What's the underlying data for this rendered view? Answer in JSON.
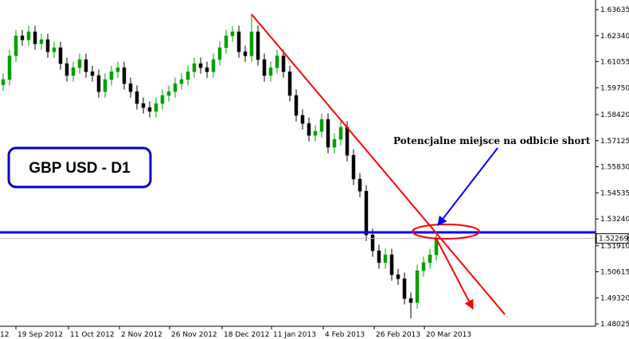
{
  "chart_data": {
    "type": "candlestick",
    "title": "GBP USD - D1",
    "annotation": "Potencjalne miejsce na odbicie short",
    "up_color": "#00a000",
    "down_color": "#000000",
    "xlim": [
      -0.5,
      93
    ],
    "xticks": [
      {
        "value": -0.75,
        "label": "12"
      },
      {
        "value": 2,
        "label": "19 Sep 2012"
      },
      {
        "value": 10.25,
        "label": "11 Oct 2012"
      },
      {
        "value": 18.25,
        "label": "2 Nov 2012"
      },
      {
        "value": 26.125,
        "label": "26 Nov 2012"
      },
      {
        "value": 34.375,
        "label": "18 Dec 2012"
      },
      {
        "value": 42.125,
        "label": "11 Jan 2013"
      },
      {
        "value": 50.25,
        "label": "4 Feb 2013"
      },
      {
        "value": 58.25,
        "label": "26 Feb 2013"
      },
      {
        "value": 66.125,
        "label": "20 Mar 2013"
      }
    ],
    "ylim": [
      1.4791,
      1.6411
    ],
    "yticks": [
      1.63635,
      {
        "value": 1.6234,
        "label": "1.62340"
      },
      1.61055,
      {
        "value": 1.5975,
        "label": "1.59750"
      },
      {
        "value": 1.5842,
        "label": "1.58420"
      },
      1.57125,
      {
        "value": 1.5583,
        "label": "1.55830"
      },
      1.54535,
      {
        "value": 1.5324,
        "label": "1.53240"
      },
      {
        "value": 1.5191,
        "label": "1.51910"
      },
      1.50615,
      {
        "value": 1.4932,
        "label": "1.49320"
      },
      1.48025
    ],
    "last_price": 1.52269,
    "level": {
      "value": 1.5257,
      "color": "#0000ff"
    },
    "trendline": {
      "x": [
        39,
        78.75
      ],
      "y": [
        1.634,
        1.485
      ],
      "color": "#ff0000"
    },
    "open": [
      1.599,
      1.6016,
      1.6134,
      1.6233,
      1.6213,
      1.6253,
      1.6194,
      1.6214,
      1.6154,
      1.6174,
      1.6095,
      1.6036,
      1.6075,
      1.6115,
      1.6055,
      1.6036,
      1.5956,
      1.6016,
      1.6055,
      1.6075,
      1.5996,
      1.5956,
      1.5897,
      1.5877,
      1.5858,
      1.5897,
      1.5937,
      1.5956,
      1.5996,
      1.6016,
      1.6055,
      1.6095,
      1.6075,
      1.6055,
      1.6115,
      1.6174,
      1.6233,
      1.6253,
      1.6154,
      1.6134,
      1.6253,
      1.6115,
      1.6036,
      1.6075,
      1.6134,
      1.6055,
      1.5937,
      1.5838,
      1.5798,
      1.5739,
      1.5759,
      1.5818,
      1.568,
      1.5719,
      1.5779,
      1.564,
      1.5522,
      1.5462,
      1.5245,
      1.5166,
      1.5107,
      1.5146,
      1.5047,
      1.5027,
      1.4929,
      1.4909,
      1.5067,
      1.5107,
      1.5146
    ],
    "high": [
      1.6046,
      1.6164,
      1.6263,
      1.6263,
      1.6283,
      1.6283,
      1.6244,
      1.6244,
      1.6204,
      1.6204,
      1.6125,
      1.6105,
      1.6145,
      1.6145,
      1.6085,
      1.6066,
      1.6046,
      1.6085,
      1.6105,
      1.6105,
      1.6026,
      1.5986,
      1.5927,
      1.5907,
      1.5927,
      1.5967,
      1.5986,
      1.6026,
      1.6046,
      1.6085,
      1.6125,
      1.6125,
      1.6105,
      1.6145,
      1.6204,
      1.6263,
      1.6283,
      1.6283,
      1.6184,
      1.634,
      1.6283,
      1.6145,
      1.6105,
      1.6164,
      1.6164,
      1.6085,
      1.5967,
      1.5868,
      1.5828,
      1.5789,
      1.5848,
      1.5848,
      1.5749,
      1.5809,
      1.5809,
      1.567,
      1.5552,
      1.5492,
      1.5275,
      1.5196,
      1.5176,
      1.5176,
      1.5077,
      1.5057,
      1.4959,
      1.5097,
      1.5137,
      1.5176,
      1.5255
    ],
    "low": [
      1.596,
      1.5986,
      1.6104,
      1.6183,
      1.6183,
      1.6164,
      1.6164,
      1.6124,
      1.6124,
      1.6065,
      1.6006,
      1.6006,
      1.6045,
      1.6025,
      1.6006,
      1.5926,
      1.5926,
      1.5986,
      1.6025,
      1.5966,
      1.5926,
      1.5867,
      1.5847,
      1.5828,
      1.5828,
      1.5867,
      1.5907,
      1.5926,
      1.5966,
      1.5986,
      1.6025,
      1.6045,
      1.6025,
      1.6025,
      1.6085,
      1.6144,
      1.6203,
      1.6124,
      1.6104,
      1.6104,
      1.6085,
      1.6006,
      1.6006,
      1.6045,
      1.6025,
      1.5907,
      1.5808,
      1.5768,
      1.5709,
      1.5709,
      1.5729,
      1.565,
      1.565,
      1.5689,
      1.561,
      1.5492,
      1.5432,
      1.5215,
      1.5136,
      1.5077,
      1.5077,
      1.5017,
      1.4997,
      1.4899,
      1.483,
      1.4879,
      1.5037,
      1.5077,
      1.5116
    ],
    "close": [
      1.6016,
      1.6134,
      1.6233,
      1.6213,
      1.6253,
      1.6194,
      1.6214,
      1.6154,
      1.6174,
      1.6095,
      1.6036,
      1.6075,
      1.6115,
      1.6055,
      1.6036,
      1.5956,
      1.6016,
      1.6055,
      1.6075,
      1.5996,
      1.5956,
      1.5897,
      1.5877,
      1.5858,
      1.5897,
      1.5937,
      1.5956,
      1.5996,
      1.6016,
      1.6055,
      1.6095,
      1.6075,
      1.6055,
      1.6115,
      1.6174,
      1.6233,
      1.6253,
      1.6154,
      1.6134,
      1.6253,
      1.6115,
      1.6036,
      1.6075,
      1.6134,
      1.6055,
      1.5937,
      1.5838,
      1.5798,
      1.5739,
      1.5759,
      1.5818,
      1.568,
      1.5719,
      1.5779,
      1.564,
      1.5522,
      1.5462,
      1.5245,
      1.5166,
      1.5107,
      1.5146,
      1.5047,
      1.5027,
      1.4929,
      1.4909,
      1.5067,
      1.5107,
      1.5146,
      1.5225
    ]
  }
}
